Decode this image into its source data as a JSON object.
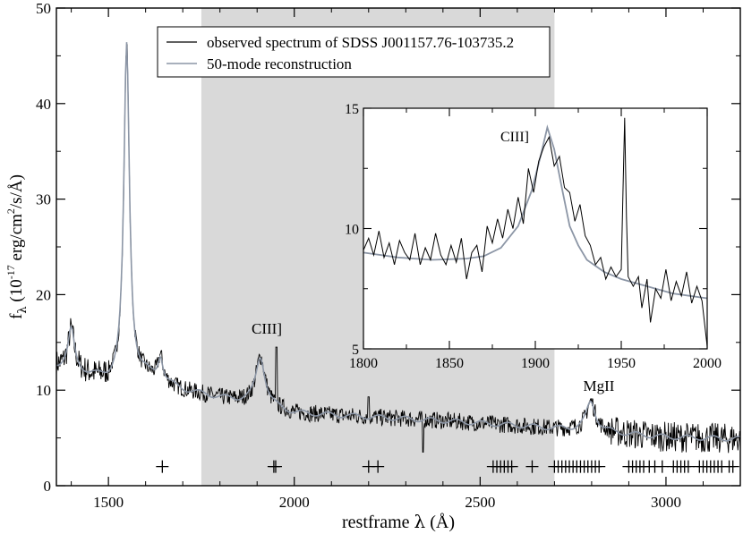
{
  "chart_data": [
    {
      "id": "main",
      "type": "line",
      "xlabel_prefix": "restframe ",
      "xlabel_symbol": "λ",
      "xlabel_suffix": " (Å)",
      "ylabel_f": "f",
      "ylabel_sub": "λ",
      "ylabel_pre": " (10",
      "ylabel_exp": "-17",
      "ylabel_mid": " erg/cm",
      "ylabel_exp2": "2",
      "ylabel_post": "/s/Å)",
      "xlim": [
        1360,
        3200
      ],
      "ylim": [
        0,
        50
      ],
      "xticks": [
        1500,
        2000,
        2500,
        3000
      ],
      "yticks": [
        0,
        10,
        20,
        30,
        40,
        50
      ],
      "shaded_region": [
        1750,
        2700
      ],
      "legend": {
        "placement": "top",
        "entries": [
          {
            "label": "observed spectrum of SDSS J001157.76-103735.2",
            "color": "#000000"
          },
          {
            "label": "50-mode reconstruction",
            "color": "#8c96a6"
          }
        ]
      },
      "annotations": [
        {
          "text": "CIII]",
          "x": 1909,
          "y": 16
        },
        {
          "text": "MgII",
          "x": 2798,
          "y": 10.2
        }
      ],
      "series_shape": {
        "continuum": [
          [
            1360,
            12.5
          ],
          [
            1400,
            12.3
          ],
          [
            1450,
            11.5
          ],
          [
            1500,
            11.0
          ],
          [
            1600,
            11.5
          ],
          [
            1700,
            10.0
          ],
          [
            1800,
            9.2
          ],
          [
            1850,
            8.9
          ],
          [
            1900,
            8.6
          ],
          [
            2000,
            7.6
          ],
          [
            2200,
            7.2
          ],
          [
            2400,
            6.8
          ],
          [
            2600,
            6.3
          ],
          [
            2700,
            6.0
          ],
          [
            2800,
            5.8
          ],
          [
            2900,
            5.4
          ],
          [
            3000,
            5.1
          ],
          [
            3100,
            5.0
          ],
          [
            3200,
            4.9
          ]
        ],
        "lines": [
          {
            "center": 1549,
            "amp": 35,
            "width": 9
          },
          {
            "center": 1400,
            "amp": 4,
            "width": 10
          },
          {
            "center": 1640,
            "amp": 2.5,
            "width": 8
          },
          {
            "center": 1909,
            "amp": 5,
            "width": 15
          },
          {
            "center": 2798,
            "amp": 3,
            "width": 15
          }
        ],
        "observed_spikes": [
          {
            "x": 1952,
            "y": 14.5
          },
          {
            "x": 2200,
            "y": 9.3
          },
          {
            "x": 2346,
            "y": 3.5
          }
        ]
      },
      "markers": [
        1645,
        1945,
        1950,
        2200,
        2225,
        2535,
        2545,
        2555,
        2565,
        2575,
        2585,
        2640,
        2700,
        2710,
        2720,
        2730,
        2740,
        2750,
        2760,
        2770,
        2780,
        2790,
        2800,
        2810,
        2820,
        2900,
        2910,
        2920,
        2930,
        2940,
        2955,
        2970,
        2990,
        3020,
        3030,
        3040,
        3050,
        3060,
        3090,
        3100,
        3110,
        3120,
        3130,
        3140,
        3150,
        3170,
        3180
      ]
    },
    {
      "id": "inset",
      "type": "line",
      "xlim": [
        1800,
        2000
      ],
      "ylim": [
        5,
        15
      ],
      "xticks": [
        1800,
        1850,
        1900,
        1950,
        2000
      ],
      "yticks": [
        5,
        10,
        15
      ],
      "annotations": [
        {
          "text": "CIII]",
          "x": 1883,
          "y": 13.9
        }
      ],
      "reconstruction": [
        [
          1800,
          9.0
        ],
        [
          1820,
          8.8
        ],
        [
          1840,
          8.7
        ],
        [
          1860,
          8.75
        ],
        [
          1870,
          8.85
        ],
        [
          1880,
          9.2
        ],
        [
          1890,
          10.1
        ],
        [
          1898,
          11.6
        ],
        [
          1903,
          13.0
        ],
        [
          1907,
          14.2
        ],
        [
          1911,
          13.3
        ],
        [
          1916,
          11.5
        ],
        [
          1920,
          10.1
        ],
        [
          1925,
          9.3
        ],
        [
          1930,
          8.7
        ],
        [
          1940,
          8.2
        ],
        [
          1950,
          7.9
        ],
        [
          1960,
          7.7
        ],
        [
          1970,
          7.5
        ],
        [
          1980,
          7.3
        ],
        [
          1990,
          7.2
        ],
        [
          2000,
          7.1
        ]
      ],
      "observed": [
        [
          1800,
          9.1
        ],
        [
          1803,
          9.6
        ],
        [
          1806,
          8.9
        ],
        [
          1809,
          9.9
        ],
        [
          1812,
          8.8
        ],
        [
          1815,
          9.4
        ],
        [
          1818,
          8.5
        ],
        [
          1821,
          9.5
        ],
        [
          1824,
          9.0
        ],
        [
          1827,
          8.7
        ],
        [
          1830,
          9.8
        ],
        [
          1833,
          8.5
        ],
        [
          1836,
          9.2
        ],
        [
          1839,
          8.7
        ],
        [
          1842,
          9.8
        ],
        [
          1845,
          8.9
        ],
        [
          1848,
          8.5
        ],
        [
          1851,
          9.3
        ],
        [
          1854,
          8.6
        ],
        [
          1857,
          9.6
        ],
        [
          1860,
          7.9
        ],
        [
          1863,
          9.0
        ],
        [
          1866,
          9.3
        ],
        [
          1869,
          8.2
        ],
        [
          1872,
          10.1
        ],
        [
          1875,
          9.4
        ],
        [
          1878,
          10.4
        ],
        [
          1881,
          9.6
        ],
        [
          1884,
          10.8
        ],
        [
          1887,
          10.0
        ],
        [
          1890,
          11.3
        ],
        [
          1893,
          10.2
        ],
        [
          1896,
          12.5
        ],
        [
          1899,
          11.5
        ],
        [
          1902,
          12.8
        ],
        [
          1905,
          13.4
        ],
        [
          1908,
          13.8
        ],
        [
          1911,
          12.6
        ],
        [
          1914,
          13.0
        ],
        [
          1917,
          11.7
        ],
        [
          1920,
          11.5
        ],
        [
          1923,
          10.3
        ],
        [
          1926,
          11.0
        ],
        [
          1929,
          9.7
        ],
        [
          1932,
          9.3
        ],
        [
          1935,
          8.5
        ],
        [
          1938,
          8.8
        ],
        [
          1941,
          7.9
        ],
        [
          1944,
          8.4
        ],
        [
          1947,
          8.0
        ],
        [
          1950,
          8.3
        ],
        [
          1951,
          11.5
        ],
        [
          1952,
          14.6
        ],
        [
          1953,
          10.5
        ],
        [
          1954,
          8.0
        ],
        [
          1957,
          7.6
        ],
        [
          1960,
          8.0
        ],
        [
          1962,
          6.7
        ],
        [
          1965,
          7.9
        ],
        [
          1967,
          6.1
        ],
        [
          1970,
          7.5
        ],
        [
          1973,
          7.1
        ],
        [
          1976,
          8.3
        ],
        [
          1979,
          7.0
        ],
        [
          1982,
          7.8
        ],
        [
          1985,
          7.2
        ],
        [
          1988,
          8.2
        ],
        [
          1991,
          6.9
        ],
        [
          1994,
          7.6
        ],
        [
          1997,
          7.0
        ],
        [
          2000,
          5.1
        ]
      ]
    }
  ]
}
